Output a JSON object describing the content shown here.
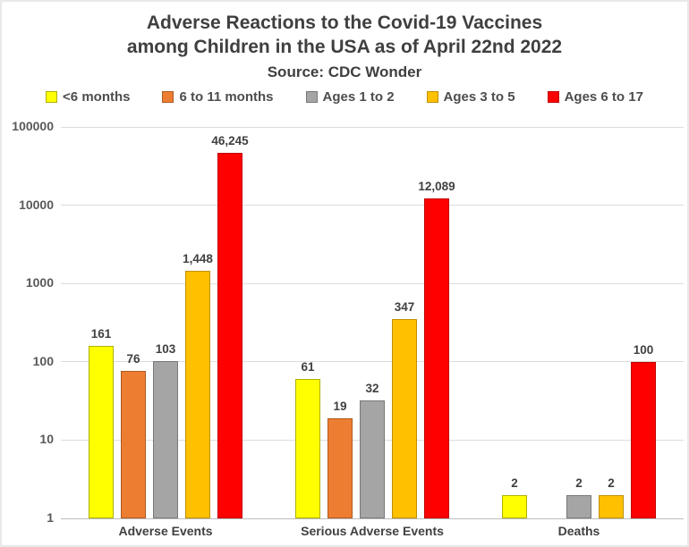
{
  "title": {
    "line1": "Adverse Reactions to the Covid-19 Vaccines",
    "line2": "among Children in the USA as of April 22nd 2022",
    "source": "Source: CDC Wonder"
  },
  "chart_data": {
    "type": "bar",
    "scale": "log10",
    "title": "Adverse Reactions to the Covid-19 Vaccines among Children in the USA as of April 22nd 2022",
    "subtitle": "Source: CDC Wonder",
    "categories": [
      "Adverse Events",
      "Serious Adverse Events",
      "Deaths"
    ],
    "series": [
      {
        "name": "<6 months",
        "fill": "#FFFF00",
        "border": "#B0B000",
        "values": [
          161,
          61,
          2
        ],
        "labels": [
          "161",
          "61",
          "2"
        ]
      },
      {
        "name": "6 to 11 months",
        "fill": "#ED7D31",
        "border": "#AE5A21",
        "values": [
          76,
          19,
          null
        ],
        "labels": [
          "76",
          "19",
          null
        ]
      },
      {
        "name": "Ages 1 to 2",
        "fill": "#A5A5A5",
        "border": "#787878",
        "values": [
          103,
          32,
          2
        ],
        "labels": [
          "103",
          "32",
          "2"
        ]
      },
      {
        "name": "Ages 3 to 5",
        "fill": "#FFC000",
        "border": "#BF8F00",
        "values": [
          1448,
          347,
          2
        ],
        "labels": [
          "1,448",
          "347",
          "2"
        ]
      },
      {
        "name": "Ages 6 to 17",
        "fill": "#FF0000",
        "border": "#C00000",
        "values": [
          46245,
          12089,
          100
        ],
        "labels": [
          "46,245",
          "12,089",
          "100"
        ]
      }
    ],
    "y_ticks": [
      "100000",
      "10000",
      "1000",
      "100",
      "10",
      "1"
    ],
    "ylim": [
      1,
      100000
    ],
    "xlabel": "",
    "ylabel": "",
    "grid": true,
    "legend_position": "top",
    "text_color": "#404040",
    "gridline_color": "#dcdcdc"
  }
}
